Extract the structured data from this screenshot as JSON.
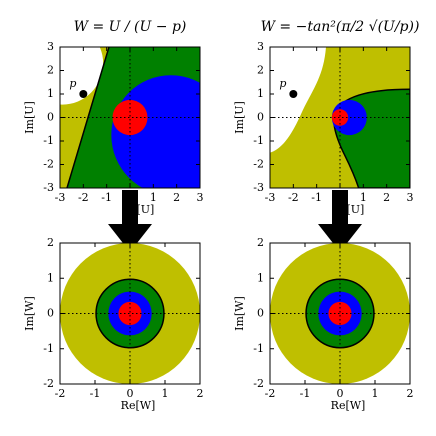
{
  "chart_data": [
    {
      "type": "region",
      "title": "W = U / (U − p)",
      "xlabel": "Re[U]",
      "ylabel": "Im[U]",
      "xlim": [
        -3,
        3
      ],
      "ylim": [
        -3,
        3
      ],
      "xticks": [
        -3,
        -2,
        -1,
        0,
        1,
        2,
        3
      ],
      "yticks": [
        -3,
        -2,
        -1,
        0,
        1,
        2,
        3
      ],
      "points": [
        {
          "label": "p",
          "x": -2,
          "y": 1
        }
      ],
      "colors": [
        "#bfbf00",
        "#008000",
        "#0000ff",
        "#ff0000"
      ]
    },
    {
      "type": "region",
      "title": "W = −tan²(π/2 √(U/p))",
      "xlabel": "Re[U]",
      "ylabel": "Im[U]",
      "xlim": [
        -3,
        3
      ],
      "ylim": [
        -3,
        3
      ],
      "xticks": [
        -3,
        -2,
        -1,
        0,
        1,
        2,
        3
      ],
      "yticks": [
        -3,
        -2,
        -1,
        0,
        1,
        2,
        3
      ],
      "points": [
        {
          "label": "p",
          "x": -2,
          "y": 1
        }
      ],
      "colors": [
        "#bfbf00",
        "#008000",
        "#0000ff",
        "#ff0000"
      ]
    },
    {
      "type": "region",
      "xlabel": "Re[W]",
      "ylabel": "Im[W]",
      "xlim": [
        -2,
        2
      ],
      "ylim": [
        -2,
        2
      ],
      "xticks": [
        -2,
        -1,
        0,
        1,
        2
      ],
      "yticks": [
        -2,
        -1,
        0,
        1,
        2
      ],
      "colors": [
        "#bfbf00",
        "#008000",
        "#0000ff",
        "#ff0000"
      ]
    },
    {
      "type": "region",
      "xlabel": "Re[W]",
      "ylabel": "Im[W]",
      "xlim": [
        -2,
        2
      ],
      "ylim": [
        -2,
        2
      ],
      "xticks": [
        -2,
        -1,
        0,
        1,
        2
      ],
      "yticks": [
        -2,
        -1,
        0,
        1,
        2
      ],
      "colors": [
        "#bfbf00",
        "#008000",
        "#0000ff",
        "#ff0000"
      ]
    }
  ]
}
